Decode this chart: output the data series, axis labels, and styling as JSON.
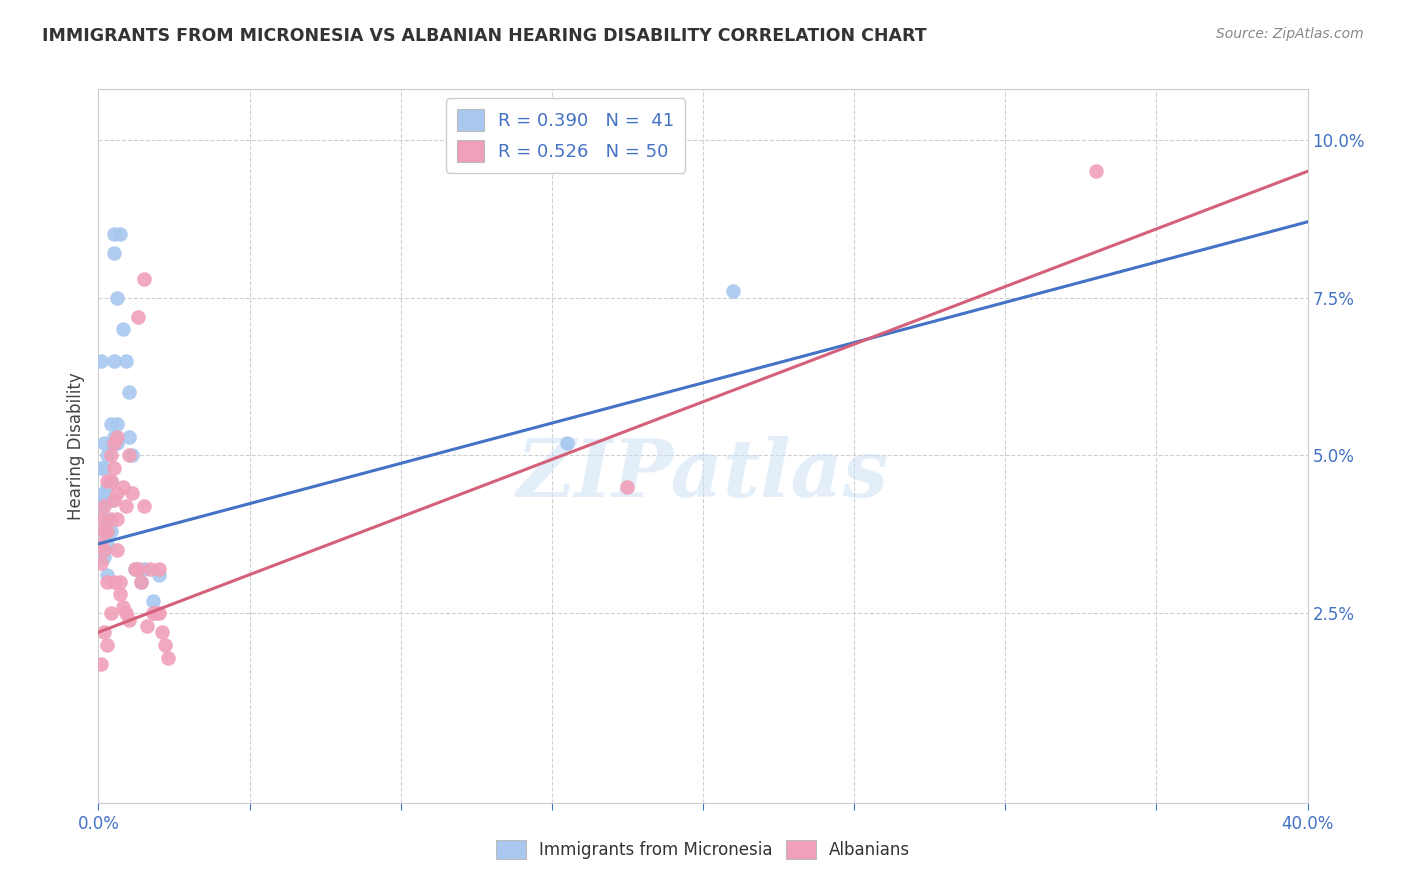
{
  "title": "IMMIGRANTS FROM MICRONESIA VS ALBANIAN HEARING DISABILITY CORRELATION CHART",
  "source": "Source: ZipAtlas.com",
  "ylabel": "Hearing Disability",
  "legend_blue": "R = 0.390   N =  41",
  "legend_pink": "R = 0.526   N = 50",
  "blue_scatter_x": [
    0.001,
    0.001,
    0.001,
    0.002,
    0.002,
    0.002,
    0.002,
    0.002,
    0.002,
    0.003,
    0.003,
    0.003,
    0.003,
    0.003,
    0.003,
    0.004,
    0.004,
    0.004,
    0.004,
    0.004,
    0.005,
    0.005,
    0.005,
    0.005,
    0.006,
    0.006,
    0.006,
    0.007,
    0.008,
    0.009,
    0.01,
    0.01,
    0.011,
    0.012,
    0.013,
    0.014,
    0.015,
    0.018,
    0.02,
    0.21,
    0.155
  ],
  "blue_scatter_y": [
    0.065,
    0.048,
    0.042,
    0.052,
    0.048,
    0.044,
    0.043,
    0.038,
    0.034,
    0.05,
    0.045,
    0.04,
    0.038,
    0.036,
    0.031,
    0.055,
    0.052,
    0.046,
    0.043,
    0.038,
    0.085,
    0.082,
    0.065,
    0.053,
    0.075,
    0.055,
    0.052,
    0.085,
    0.07,
    0.065,
    0.06,
    0.053,
    0.05,
    0.032,
    0.032,
    0.03,
    0.032,
    0.027,
    0.031,
    0.076,
    0.052
  ],
  "pink_scatter_x": [
    0.001,
    0.001,
    0.001,
    0.001,
    0.002,
    0.002,
    0.002,
    0.002,
    0.003,
    0.003,
    0.003,
    0.003,
    0.004,
    0.004,
    0.004,
    0.004,
    0.005,
    0.005,
    0.005,
    0.005,
    0.006,
    0.006,
    0.006,
    0.006,
    0.007,
    0.007,
    0.008,
    0.008,
    0.009,
    0.009,
    0.01,
    0.01,
    0.011,
    0.012,
    0.013,
    0.014,
    0.015,
    0.016,
    0.017,
    0.018,
    0.019,
    0.02,
    0.02,
    0.021,
    0.022,
    0.023,
    0.015,
    0.013,
    0.33,
    0.175
  ],
  "pink_scatter_y": [
    0.04,
    0.036,
    0.033,
    0.017,
    0.042,
    0.038,
    0.035,
    0.022,
    0.046,
    0.038,
    0.03,
    0.02,
    0.05,
    0.046,
    0.04,
    0.025,
    0.052,
    0.048,
    0.043,
    0.03,
    0.053,
    0.044,
    0.04,
    0.035,
    0.03,
    0.028,
    0.045,
    0.026,
    0.042,
    0.025,
    0.05,
    0.024,
    0.044,
    0.032,
    0.032,
    0.03,
    0.042,
    0.023,
    0.032,
    0.025,
    0.025,
    0.032,
    0.025,
    0.022,
    0.02,
    0.018,
    0.078,
    0.072,
    0.095,
    0.045
  ],
  "blue_line_x": [
    0.0,
    0.4
  ],
  "blue_line_y": [
    0.036,
    0.087
  ],
  "pink_line_x": [
    0.0,
    0.4
  ],
  "pink_line_y": [
    0.022,
    0.095
  ],
  "xlim": [
    0.0,
    0.4
  ],
  "ylim": [
    -0.005,
    0.108
  ],
  "xtick_positions": [
    0.0,
    0.05,
    0.1,
    0.15,
    0.2,
    0.25,
    0.3,
    0.35,
    0.4
  ],
  "xtick_labels": [
    "0.0%",
    "",
    "",
    "",
    "",
    "",
    "",
    "",
    "40.0%"
  ],
  "ytick_positions": [
    0.025,
    0.05,
    0.075,
    0.1
  ],
  "ytick_labels": [
    "2.5%",
    "5.0%",
    "7.5%",
    "10.0%"
  ],
  "blue_color": "#a8c8f0",
  "pink_color": "#f0a0b8",
  "blue_line_color": "#4472c4",
  "pink_line_color": "#d4607a",
  "watermark": "ZIPatlas",
  "background_color": "#ffffff",
  "grid_color": "#d0d0d0",
  "tick_color": "#4472c4",
  "title_color": "#333333",
  "source_color": "#888888"
}
